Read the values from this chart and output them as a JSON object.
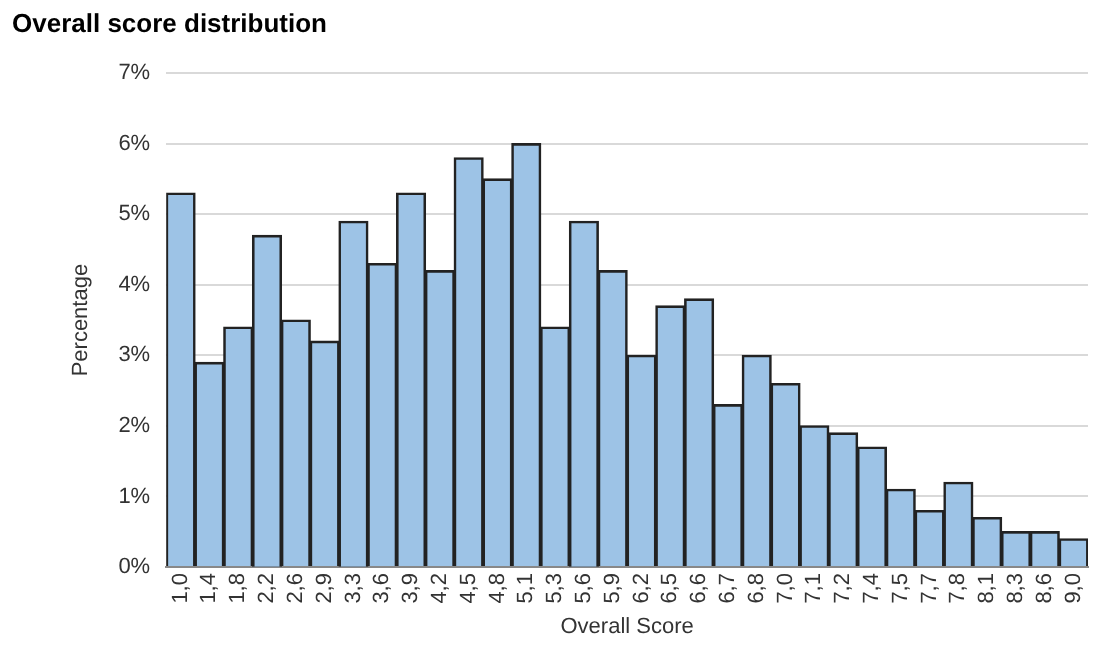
{
  "chart_data": {
    "type": "bar",
    "title": "Overall score distribution",
    "xlabel": "Overall Score",
    "ylabel": "Percentage",
    "categories": [
      "1,0",
      "1,4",
      "1,8",
      "2,2",
      "2,6",
      "2,9",
      "3,3",
      "3,6",
      "3,9",
      "4,2",
      "4,5",
      "4,8",
      "5,1",
      "5,3",
      "5,6",
      "5,9",
      "6,2",
      "6,5",
      "6,6",
      "6,7",
      "6,8",
      "7,0",
      "7,1",
      "7,2",
      "7,4",
      "7,5",
      "7,7",
      "7,8",
      "8,1",
      "8,3",
      "8,6",
      "9,0"
    ],
    "values": [
      5.3,
      2.9,
      3.4,
      4.7,
      3.5,
      3.2,
      4.9,
      4.3,
      5.3,
      4.2,
      5.8,
      5.5,
      6.0,
      3.4,
      4.9,
      4.2,
      3.0,
      3.7,
      3.8,
      2.3,
      3.0,
      2.6,
      2.0,
      1.9,
      1.7,
      1.1,
      0.8,
      1.2,
      0.7,
      0.5,
      0.5,
      0.4
    ],
    "color": "#9dc3e6",
    "ylim": [
      0,
      7
    ],
    "yticks": [
      {
        "value": 0,
        "label": "0%"
      },
      {
        "value": 1,
        "label": "1%"
      },
      {
        "value": 2,
        "label": "2%"
      },
      {
        "value": 3,
        "label": "3%"
      },
      {
        "value": 4,
        "label": "4%"
      },
      {
        "value": 5,
        "label": "5%"
      },
      {
        "value": 6,
        "label": "6%"
      },
      {
        "value": 7,
        "label": "7%"
      }
    ],
    "grid": "y",
    "legend": false
  }
}
